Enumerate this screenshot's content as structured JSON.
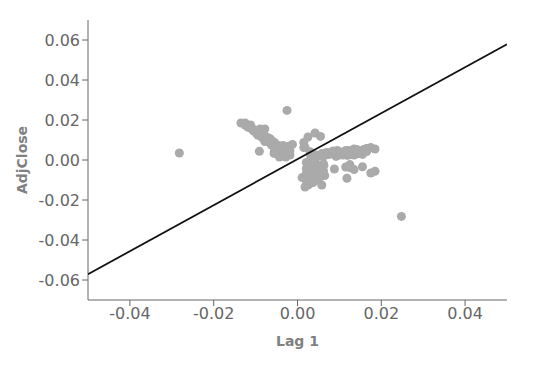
{
  "chart_data": {
    "type": "scatter",
    "xlabel": "Lag 1",
    "ylabel": "AdjClose",
    "grid": false,
    "xlim": [
      -0.05,
      0.05
    ],
    "ylim": [
      -0.07,
      0.07
    ],
    "xticks": [
      -0.04,
      -0.02,
      {
        "value": 0,
        "label": "0.00"
      },
      0.02,
      0.04
    ],
    "yticks": [
      -0.06,
      -0.04,
      -0.02,
      {
        "value": 0,
        "label": "0.00"
      },
      0.02,
      0.04,
      0.06
    ],
    "series": [
      {
        "type": "scatter",
        "color": "#aaaaaa",
        "x": [
          0.003,
          0.0041,
          -0.0022,
          0.0058,
          0.0032,
          0.0021,
          -0.0043,
          0.0015,
          0.0062,
          -0.0018,
          0.0025,
          0.0115,
          -0.0035,
          0.0044,
          0.0021,
          -0.0012,
          0.0078,
          0.0031,
          -0.0055,
          0.0042,
          0.0018,
          0.0063,
          -0.0028,
          0.0015,
          0.0088,
          -0.0045,
          0.0032,
          0.0021,
          -0.0067,
          0.0095,
          0.0048,
          -0.0089,
          0.0155,
          -0.0034,
          0.0072,
          0.0028,
          -0.0051,
          0.0044,
          0.0011,
          -0.0088,
          0.0125,
          -0.0023,
          0.0067,
          0.0035,
          -0.0044,
          0.0058,
          -0.0125,
          0.0185,
          -0.0056,
          0.0033,
          0.0024,
          -0.0078,
          0.0092,
          0.0041,
          -0.0033,
          0.0055,
          0.0118,
          -0.0091,
          0.0044,
          0.0025,
          -0.0038,
          0.0065,
          0.0022,
          -0.0088,
          0.0145,
          0.0032,
          -0.0062,
          0.0075,
          0.0028,
          -0.0055,
          0.0042,
          0.0135,
          -0.0048,
          0.0065,
          -0.0078,
          0.0155,
          0.0028,
          -0.0112,
          0.0175,
          -0.0065,
          0.0088,
          0.0042,
          -0.0095,
          0.0125,
          -0.0038,
          0.0055,
          0.0022,
          -0.0072,
          0.0112,
          0.0038,
          -0.0065,
          0.0085,
          0.0045,
          -0.0098,
          0.0135,
          0.0025,
          -0.0055,
          0.0075,
          0.0032,
          -0.0085,
          0.0115,
          0.0048,
          -0.0075,
          0.0095,
          0.0028,
          -0.0118,
          0.0165,
          0.0042,
          -0.0088,
          0.0125,
          0.0035,
          -0.0065,
          0.0092,
          0.0018,
          -0.0135,
          0.0185,
          0.0055,
          -0.0045,
          0.0072,
          0.0038,
          -0.0082,
          0.0108,
          0.0025,
          -0.0055,
          0.0085,
          0.0042,
          -0.0092,
          0.0125,
          0.0038,
          -0.0065,
          0.0095,
          0.0022,
          -0.0115,
          0.0165,
          0.0048,
          -0.0078,
          0.0112,
          0.0032,
          -0.0068,
          0.0105,
          0.0028,
          -0.0095,
          0.0135,
          0.0055,
          -0.0082,
          0.0118,
          0.0025,
          -0.0125,
          0.0175,
          0.0062,
          -0.0055,
          0.0088,
          0.0035,
          -0.0105,
          0.0145,
          0.0042,
          -0.0072,
          0.0102,
          0.0028,
          -0.0088,
          0.0122,
          0.0048,
          -0.0095,
          0.0135,
          0.0032,
          -0.0115,
          0.0168,
          0.0055,
          -0.0062,
          0.0098,
          0.0025,
          -0.0082,
          0.0118,
          0.0038,
          -0.0105,
          0.0148,
          0.0042,
          -0.0078,
          0.0112,
          0.0032,
          -0.0098,
          0.0142,
          0.0052,
          -0.0088,
          0.0125,
          0.0028,
          -0.0118,
          0.0165,
          0.0058,
          -0.0068,
          0.0108,
          0.0035,
          -0.0092,
          0.0132,
          0.0045,
          -0.0082,
          0.0118,
          0.0025,
          -0.0108,
          0.0155,
          0.0048,
          -0.0095,
          0.0138,
          0.0038,
          -0.0112,
          0.0162,
          0.0052,
          -0.0075,
          0.0115,
          0.0032,
          -0.0102,
          0.0148,
          0.0042,
          -0.0088,
          0.0128,
          0.0028,
          -0.0118,
          0.0168,
          0.0058,
          -0.0065,
          0.0105,
          0.0035,
          -0.0095,
          0.0138,
          0.0045,
          -0.0082,
          0.0122,
          0.0025,
          -0.0108,
          0.0158,
          0.0052,
          -0.0072,
          0.0112,
          0.0032,
          -0.0098,
          0.0145,
          0.0042,
          -0.0085,
          0.0125,
          0.0028,
          -0.0115,
          0.0165,
          0.0055,
          -0.0068,
          0.0108,
          0.0035,
          -0.0092,
          0.0135,
          0.0048,
          -0.0025,
          0.0248,
          -0.0282,
          0.0035,
          0.0028,
          -0.0018
        ],
        "values": [
          0.0041,
          -0.0022,
          0.0058,
          0.0032,
          0.0021,
          -0.0043,
          0.0015,
          0.0062,
          -0.0018,
          0.0025,
          0.0115,
          -0.0035,
          0.0044,
          0.0021,
          -0.0012,
          0.0078,
          0.0031,
          -0.0055,
          0.0042,
          0.0018,
          0.0063,
          -0.0028,
          0.0015,
          0.0088,
          -0.0045,
          0.0032,
          0.0021,
          -0.0067,
          0.0095,
          0.0048,
          -0.0089,
          0.0155,
          -0.0034,
          0.0072,
          0.0028,
          -0.0051,
          0.0044,
          0.0011,
          -0.0088,
          0.0125,
          -0.0023,
          0.0067,
          0.0035,
          -0.0044,
          0.0058,
          -0.0125,
          0.0185,
          -0.0056,
          0.0033,
          0.0024,
          -0.0078,
          0.0092,
          0.0041,
          -0.0033,
          0.0055,
          0.0118,
          -0.0091,
          0.0044,
          0.0025,
          -0.0038,
          0.0065,
          0.0022,
          -0.0088,
          0.0145,
          0.0032,
          -0.0062,
          0.0075,
          0.0028,
          -0.0055,
          0.0042,
          0.0135,
          -0.0048,
          0.0065,
          -0.0078,
          0.0155,
          0.0028,
          -0.0112,
          0.0175,
          -0.0065,
          0.0088,
          0.0042,
          -0.0095,
          0.0125,
          -0.0038,
          0.0055,
          0.0022,
          -0.0072,
          0.0112,
          0.0038,
          -0.0065,
          0.0085,
          0.0045,
          -0.0098,
          0.0135,
          0.0025,
          -0.0055,
          0.0075,
          0.0032,
          -0.0085,
          0.0115,
          0.0048,
          -0.0075,
          0.0095,
          0.0028,
          -0.0118,
          0.0165,
          0.0042,
          -0.0088,
          0.0125,
          0.0035,
          -0.0065,
          0.0092,
          0.0018,
          -0.0135,
          0.0185,
          0.0055,
          -0.0045,
          0.0072,
          0.0038,
          -0.0082,
          0.0108,
          0.0025,
          -0.0055,
          0.0085,
          0.0042,
          -0.0092,
          0.0125,
          0.0038,
          -0.0065,
          0.0095,
          0.0022,
          -0.0115,
          0.0165,
          0.0048,
          -0.0078,
          0.0112,
          0.0032,
          -0.0068,
          0.0105,
          0.0028,
          -0.0095,
          0.0135,
          0.0055,
          -0.0082,
          0.0118,
          0.0025,
          -0.0125,
          0.0175,
          0.0062,
          -0.0055,
          0.0088,
          0.0035,
          -0.0105,
          0.0145,
          0.0042,
          -0.0072,
          0.0102,
          0.0028,
          -0.0088,
          0.0122,
          0.0048,
          -0.0095,
          0.0135,
          0.0032,
          -0.0115,
          0.0168,
          0.0055,
          -0.0062,
          0.0098,
          0.0025,
          -0.0082,
          0.0118,
          0.0038,
          -0.0105,
          0.0148,
          0.0042,
          -0.0078,
          0.0112,
          0.0032,
          -0.0098,
          0.0142,
          0.0052,
          -0.0088,
          0.0125,
          0.0028,
          -0.0118,
          0.0165,
          0.0058,
          -0.0068,
          0.0108,
          0.0035,
          -0.0092,
          0.0132,
          0.0045,
          -0.0082,
          0.0118,
          0.0025,
          -0.0108,
          0.0155,
          0.0048,
          -0.0095,
          0.0138,
          0.0038,
          -0.0112,
          0.0162,
          0.0052,
          -0.0075,
          0.0115,
          0.0032,
          -0.0102,
          0.0148,
          0.0042,
          -0.0088,
          0.0128,
          0.0028,
          -0.0118,
          0.0168,
          0.0058,
          -0.0065,
          0.0105,
          0.0035,
          -0.0095,
          0.0138,
          0.0045,
          -0.0082,
          0.0122,
          0.0025,
          -0.0108,
          0.0158,
          0.0052,
          -0.0072,
          0.0112,
          0.0032,
          -0.0098,
          0.0145,
          0.0042,
          -0.0085,
          0.0125,
          0.0028,
          -0.0115,
          0.0165,
          0.0055,
          -0.0068,
          0.0108,
          0.0035,
          -0.0092,
          0.0135,
          0.0048,
          -0.0025,
          0.0248,
          -0.0282,
          0.0035,
          0.0028,
          -0.0018,
          0.0045
        ]
      },
      {
        "type": "line",
        "color": "#111111",
        "x": [
          -0.05,
          0.05
        ],
        "values": [
          -0.0571,
          0.0579
        ]
      }
    ]
  }
}
